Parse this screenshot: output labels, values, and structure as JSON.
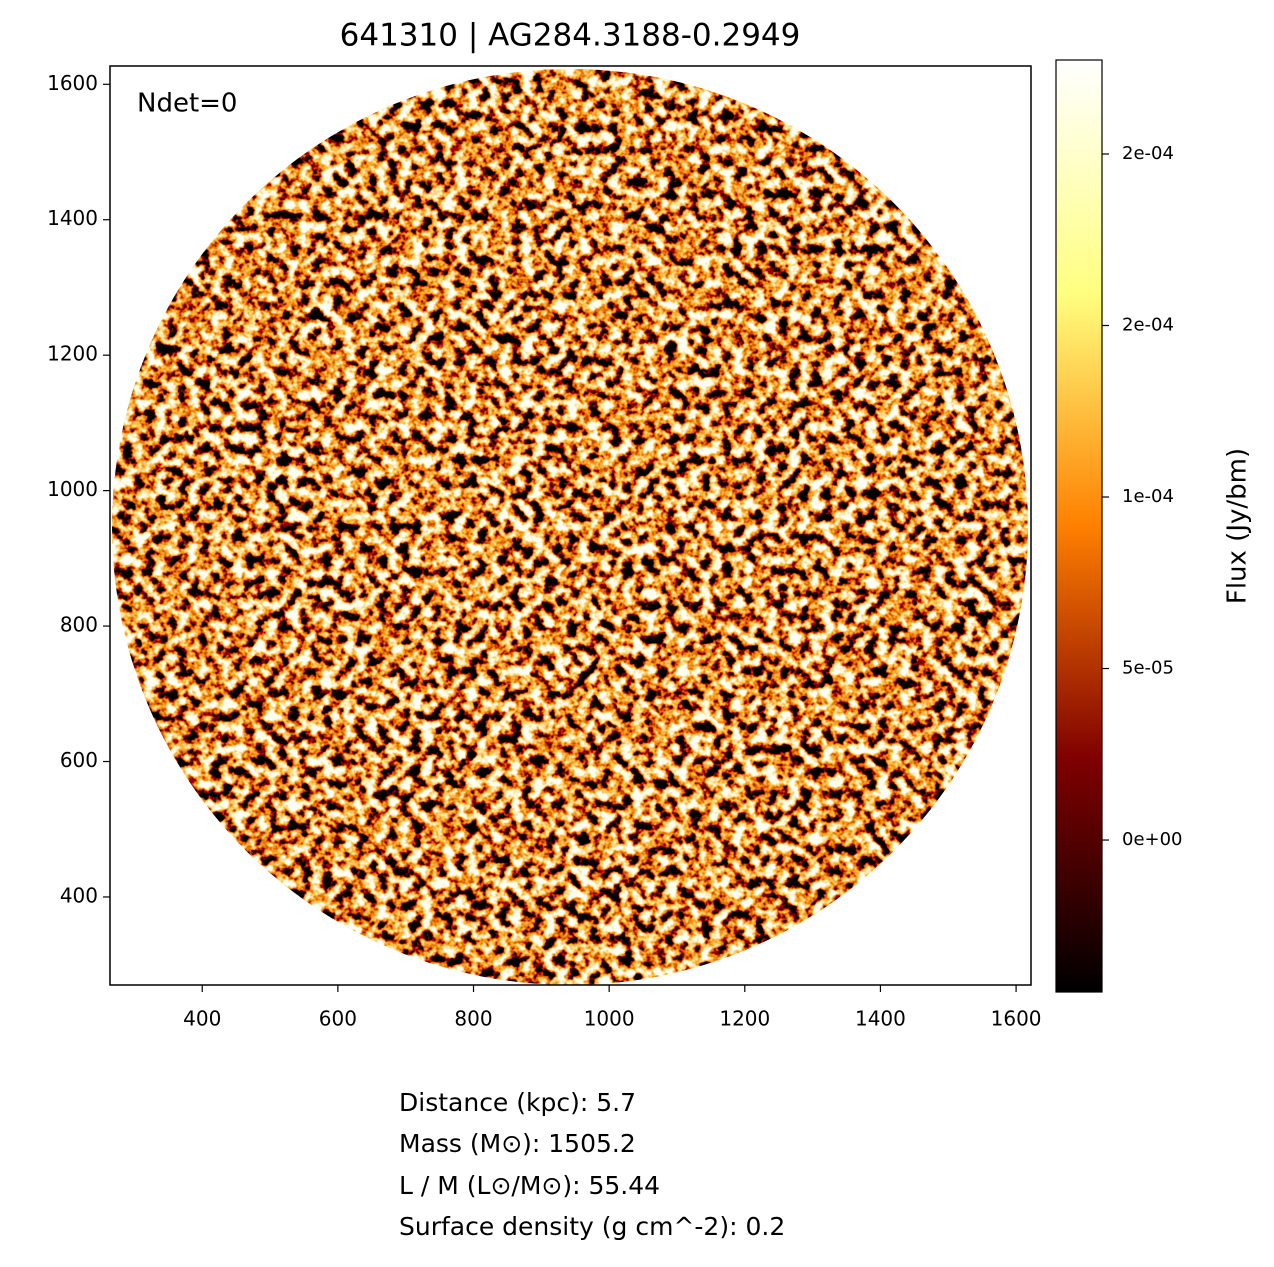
{
  "chart_data": {
    "type": "image",
    "title": "641310 | AG284.3188-0.2949",
    "annotation": "Ndet=0",
    "xlim": [
      264,
      1622
    ],
    "xticks": [
      400,
      600,
      800,
      1000,
      1200,
      1400,
      1600
    ],
    "ylim": [
      270,
      1627
    ],
    "yticks": [
      400,
      600,
      800,
      1000,
      1200,
      1400,
      1600
    ],
    "colorbar": {
      "label": "Flux (Jy/bm)",
      "lim": [
        -4.43e-05,
        0.0002274
      ],
      "ticks": [
        {
          "value": 0,
          "label": "0e+00"
        },
        {
          "value": 5e-05,
          "label": "5e-05"
        },
        {
          "value": 0.0001,
          "label": "1e-04"
        },
        {
          "value": 0.00015,
          "label": "2e-04"
        },
        {
          "value": 0.0002,
          "label": "2e-04"
        }
      ]
    },
    "footer": [
      "Distance (kpc): 5.7",
      "Mass (M⊙): 1505.2",
      "L / M (L⊙/M⊙): 55.44",
      "Surface density (g cm^-2): 0.2"
    ]
  }
}
